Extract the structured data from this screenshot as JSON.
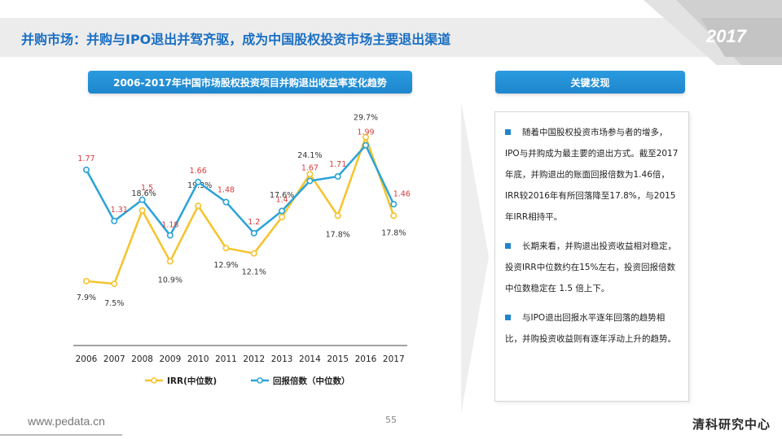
{
  "header": {
    "title": "并购市场：并购与IPO退出并驾齐驱，成为中国股权投资市场主要退出渠道",
    "year": "2017"
  },
  "chart_title": "2006-2017年中国市场股权投资项目并购退出收益率变化趋势",
  "findings": {
    "title": "关键发现",
    "items": [
      "随着中国股权投资市场参与者的增多，IPO与并购成为最主要的退出方式。截至2017年底，并购退出的账面回报倍数为1.46倍，IRR较2016年有所回落降至17.8%，与2015年IRR相持平。",
      "长期来看，并购退出投资收益相对稳定，投资IRR中位数约在15%左右，投资回报倍数中位数稳定在 1.5 倍上下。",
      "与IPO退出回报水平逐年回落的趋势相比，并购投资收益则有逐年浮动上升的趋势。"
    ]
  },
  "chart_data": {
    "type": "line",
    "categories": [
      "2006",
      "2007",
      "2008",
      "2009",
      "2010",
      "2011",
      "2012",
      "2013",
      "2014",
      "2015",
      "2016",
      "2017"
    ],
    "series": [
      {
        "name": "IRR(中位数)",
        "color": "#f5c32c",
        "values": [
          7.9,
          7.5,
          18.6,
          10.9,
          19.3,
          12.9,
          12.1,
          17.6,
          24.1,
          17.8,
          29.7,
          17.8
        ],
        "labels": [
          "7.9%",
          "7.5%",
          "18.6%",
          "10.9%",
          "19.3%",
          "12.9%",
          "12.1%",
          "17.6%",
          "24.1%",
          "17.8%",
          "29.7%",
          "17.8%"
        ],
        "label_color": "#333333",
        "ylim": [
          0,
          32
        ]
      },
      {
        "name": "回报倍数（中位数）",
        "color": "#2aa3d8",
        "values": [
          1.77,
          1.31,
          1.5,
          1.18,
          1.66,
          1.48,
          1.2,
          1.4,
          1.67,
          1.71,
          1.99,
          1.46
        ],
        "labels": [
          "1.77",
          "1.31",
          "1.5",
          "1.18",
          "1.66",
          "1.48",
          "1.2",
          "1.4",
          "1.67",
          "1.71",
          "1.99",
          "1.46"
        ],
        "label_color": "#d93a3a",
        "ylim": [
          0.3,
          2.2
        ]
      }
    ]
  },
  "footer": {
    "url": "www.pedata.cn",
    "page": "55",
    "brand": "清科研究中心"
  }
}
